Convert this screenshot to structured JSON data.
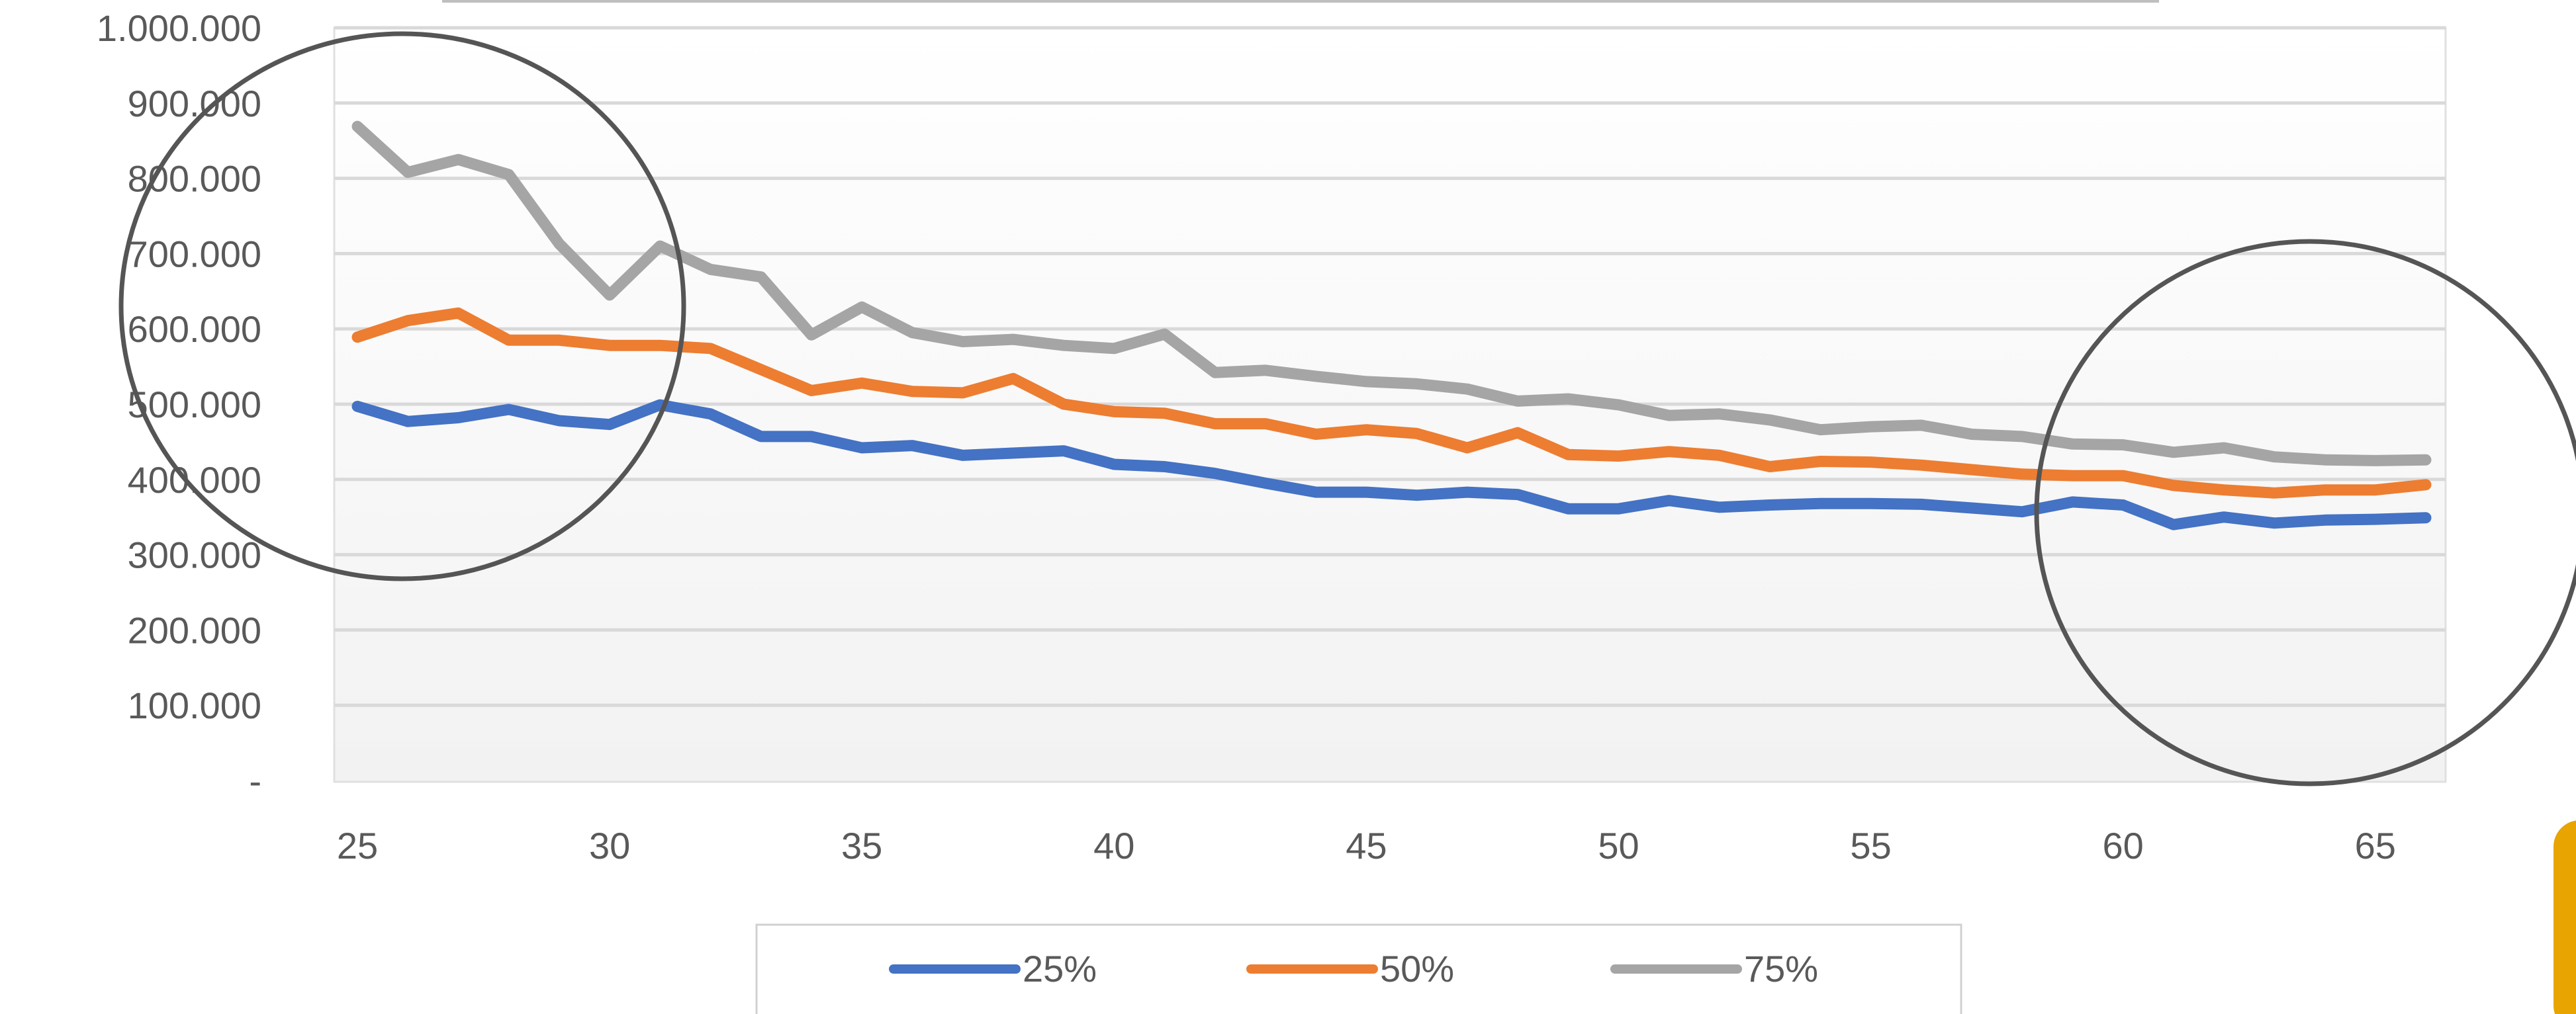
{
  "chart_data": {
    "type": "line",
    "x": [
      25,
      26,
      27,
      28,
      29,
      30,
      31,
      32,
      33,
      34,
      35,
      36,
      37,
      38,
      39,
      40,
      41,
      42,
      43,
      44,
      45,
      46,
      47,
      48,
      49,
      50,
      51,
      52,
      53,
      54,
      55,
      56,
      57,
      58,
      59,
      60,
      61,
      62,
      63,
      64,
      65,
      66
    ],
    "xticks": [
      {
        "value": 25,
        "label": "25"
      },
      {
        "value": 30,
        "label": "30"
      },
      {
        "value": 35,
        "label": "35"
      },
      {
        "value": 40,
        "label": "40"
      },
      {
        "value": 45,
        "label": "45"
      },
      {
        "value": 50,
        "label": "50"
      },
      {
        "value": 55,
        "label": "55"
      },
      {
        "value": 60,
        "label": "60"
      },
      {
        "value": 65,
        "label": "65"
      }
    ],
    "yticks": [
      {
        "value": 0,
        "label": "-"
      },
      {
        "value": 100000,
        "label": "100.000"
      },
      {
        "value": 200000,
        "label": "200.000"
      },
      {
        "value": 300000,
        "label": "300.000"
      },
      {
        "value": 400000,
        "label": "400.000"
      },
      {
        "value": 500000,
        "label": "500.000"
      },
      {
        "value": 600000,
        "label": "600.000"
      },
      {
        "value": 700000,
        "label": "700.000"
      },
      {
        "value": 800000,
        "label": "800.000"
      },
      {
        "value": 900000,
        "label": "900.000"
      },
      {
        "value": 1000000,
        "label": "1.000.000"
      }
    ],
    "xlim": [
      25,
      66
    ],
    "ylim": [
      0,
      1000000
    ],
    "grid": true,
    "legend_position": "bottom",
    "series": [
      {
        "name": "25%",
        "color": "#4472C4",
        "values": [
          497000,
          477000,
          482000,
          493000,
          478000,
          473000,
          499000,
          487000,
          457000,
          457000,
          442000,
          445000,
          432000,
          435000,
          438000,
          420000,
          417000,
          408000,
          395000,
          383000,
          383000,
          379000,
          383000,
          380000,
          361000,
          361000,
          372000,
          363000,
          366000,
          368000,
          368000,
          367000,
          362000,
          357000,
          370000,
          366000,
          340000,
          350000,
          342000,
          346000,
          347000,
          349000
        ]
      },
      {
        "name": "50%",
        "color": "#ED7D31",
        "values": [
          589000,
          611000,
          621000,
          585000,
          585000,
          578000,
          578000,
          574000,
          546000,
          518000,
          528000,
          517000,
          515000,
          534000,
          500000,
          490000,
          488000,
          474000,
          474000,
          460000,
          466000,
          461000,
          442000,
          462000,
          433000,
          431000,
          437000,
          432000,
          417000,
          424000,
          423000,
          419000,
          413000,
          407000,
          405000,
          405000,
          392000,
          386000,
          382000,
          386000,
          386000,
          393000
        ]
      },
      {
        "name": "75%",
        "color": "#A5A5A5",
        "values": [
          869000,
          808000,
          825000,
          805000,
          713000,
          645000,
          710000,
          679000,
          669000,
          592000,
          629000,
          595000,
          583000,
          586000,
          578000,
          574000,
          593000,
          542000,
          545000,
          537000,
          530000,
          527000,
          520000,
          504000,
          507000,
          499000,
          485000,
          487000,
          479000,
          466000,
          470000,
          472000,
          460000,
          457000,
          447000,
          446000,
          436000,
          442000,
          430000,
          426000,
          425000,
          426000
        ]
      }
    ]
  },
  "colors": {
    "plot_background": "#ffffff",
    "gridline": "#d9d9d9",
    "annotation_circle": "#555555",
    "corner_accent": "#E8A400"
  }
}
